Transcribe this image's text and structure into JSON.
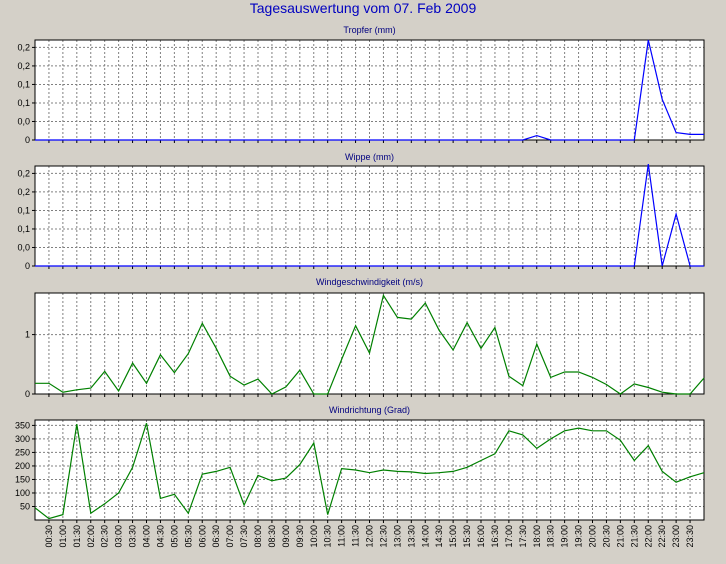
{
  "title": "Tagesauswertung vom 07. Feb 2009",
  "x_tick_labels": [
    "00:30",
    "01:00",
    "01:30",
    "02:00",
    "02:30",
    "03:00",
    "03:30",
    "04:00",
    "04:30",
    "05:00",
    "05:30",
    "06:00",
    "06:30",
    "07:00",
    "07:30",
    "08:00",
    "08:30",
    "09:00",
    "09:30",
    "10:00",
    "10:30",
    "11:00",
    "11:30",
    "12:00",
    "12:30",
    "13:00",
    "13:30",
    "14:00",
    "14:30",
    "15:00",
    "15:30",
    "16:00",
    "16:30",
    "17:00",
    "17:30",
    "18:00",
    "18:30",
    "19:00",
    "19:30",
    "20:00",
    "20:30",
    "21:00",
    "21:30",
    "22:00",
    "22:30",
    "23:00",
    "23:30"
  ],
  "chart_data": [
    {
      "type": "line",
      "title": "Tropfer (mm)",
      "color": "#0000ff",
      "ylim": [
        0,
        0.27
      ],
      "ytick_values": [
        0,
        0.05,
        0.1,
        0.15,
        0.2,
        0.25
      ],
      "ytick_labels": [
        "0",
        "0,0",
        "0,1",
        "0,1",
        "0,2",
        "0,2"
      ],
      "x": [
        "00:00",
        "00:30",
        "01:00",
        "01:30",
        "02:00",
        "02:30",
        "03:00",
        "03:30",
        "04:00",
        "04:30",
        "05:00",
        "05:30",
        "06:00",
        "06:30",
        "07:00",
        "07:30",
        "08:00",
        "08:30",
        "09:00",
        "09:30",
        "10:00",
        "10:30",
        "11:00",
        "11:30",
        "12:00",
        "12:30",
        "13:00",
        "13:30",
        "14:00",
        "14:30",
        "15:00",
        "15:30",
        "16:00",
        "16:30",
        "17:00",
        "17:30",
        "18:00",
        "18:30",
        "19:00",
        "19:30",
        "20:00",
        "20:30",
        "21:00",
        "21:30",
        "22:00",
        "22:30",
        "23:00",
        "23:30",
        "24:00"
      ],
      "values": [
        0,
        0,
        0,
        0,
        0,
        0,
        0,
        0,
        0,
        0,
        0,
        0,
        0,
        0,
        0,
        0,
        0,
        0,
        0,
        0,
        0,
        0,
        0,
        0,
        0,
        0,
        0,
        0,
        0,
        0,
        0,
        0,
        0,
        0,
        0,
        0,
        0.012,
        0,
        0,
        0,
        0,
        0,
        0,
        0,
        0.27,
        0.11,
        0.02,
        0.015,
        0.015
      ]
    },
    {
      "type": "line",
      "title": "Wippe (mm)",
      "color": "#0000ff",
      "ylim": [
        0,
        0.27
      ],
      "ytick_values": [
        0,
        0.05,
        0.1,
        0.15,
        0.2,
        0.25
      ],
      "ytick_labels": [
        "0",
        "0,0",
        "0,1",
        "0,1",
        "0,2",
        "0,2"
      ],
      "x": [
        "00:00",
        "00:30",
        "01:00",
        "01:30",
        "02:00",
        "02:30",
        "03:00",
        "03:30",
        "04:00",
        "04:30",
        "05:00",
        "05:30",
        "06:00",
        "06:30",
        "07:00",
        "07:30",
        "08:00",
        "08:30",
        "09:00",
        "09:30",
        "10:00",
        "10:30",
        "11:00",
        "11:30",
        "12:00",
        "12:30",
        "13:00",
        "13:30",
        "14:00",
        "14:30",
        "15:00",
        "15:30",
        "16:00",
        "16:30",
        "17:00",
        "17:30",
        "18:00",
        "18:30",
        "19:00",
        "19:30",
        "20:00",
        "20:30",
        "21:00",
        "21:30",
        "22:00",
        "22:30",
        "23:00",
        "23:30",
        "24:00"
      ],
      "values": [
        0,
        0,
        0,
        0,
        0,
        0,
        0,
        0,
        0,
        0,
        0,
        0,
        0,
        0,
        0,
        0,
        0,
        0,
        0,
        0,
        0,
        0,
        0,
        0,
        0,
        0,
        0,
        0,
        0,
        0,
        0,
        0,
        0,
        0,
        0,
        0,
        0,
        0,
        0,
        0,
        0,
        0,
        0,
        0,
        0.275,
        0,
        0.14,
        0,
        0
      ]
    },
    {
      "type": "line",
      "title": "Windgeschwindigkeit (m/s)",
      "color": "#008000",
      "ylim": [
        0,
        1.7
      ],
      "ytick_values": [
        0,
        1
      ],
      "ytick_labels": [
        "0",
        "1"
      ],
      "x": [
        "00:00",
        "00:30",
        "01:00",
        "01:30",
        "02:00",
        "02:30",
        "03:00",
        "03:30",
        "04:00",
        "04:30",
        "05:00",
        "05:30",
        "06:00",
        "06:30",
        "07:00",
        "07:30",
        "08:00",
        "08:30",
        "09:00",
        "09:30",
        "10:00",
        "10:30",
        "11:00",
        "11:30",
        "12:00",
        "12:30",
        "13:00",
        "13:30",
        "14:00",
        "14:30",
        "15:00",
        "15:30",
        "16:00",
        "16:30",
        "17:00",
        "17:30",
        "18:00",
        "18:30",
        "19:00",
        "19:30",
        "20:00",
        "20:30",
        "21:00",
        "21:30",
        "22:00",
        "22:30",
        "23:00",
        "23:30",
        "24:00"
      ],
      "values": [
        0.18,
        0.18,
        0.03,
        0.07,
        0.1,
        0.38,
        0.05,
        0.52,
        0.18,
        0.66,
        0.36,
        0.68,
        1.19,
        0.77,
        0.3,
        0.15,
        0.25,
        0,
        0.12,
        0.4,
        0,
        0,
        0.58,
        1.15,
        0.69,
        1.66,
        1.29,
        1.26,
        1.53,
        1.07,
        0.74,
        1.2,
        0.77,
        1.12,
        0.3,
        0.14,
        0.84,
        0.28,
        0.37,
        0.37,
        0.28,
        0.16,
        0,
        0.17,
        0.11,
        0.03,
        0,
        0,
        0.27
      ]
    },
    {
      "type": "line",
      "title": "Windrichtung (Grad)",
      "color": "#008000",
      "ylim": [
        0,
        370
      ],
      "ytick_values": [
        50,
        100,
        150,
        200,
        250,
        300,
        350
      ],
      "ytick_labels": [
        "50",
        "100",
        "150",
        "200",
        "250",
        "300",
        "350"
      ],
      "x": [
        "00:00",
        "00:30",
        "01:00",
        "01:30",
        "02:00",
        "02:30",
        "03:00",
        "03:30",
        "04:00",
        "04:30",
        "05:00",
        "05:30",
        "06:00",
        "06:30",
        "07:00",
        "07:30",
        "08:00",
        "08:30",
        "09:00",
        "09:30",
        "10:00",
        "10:30",
        "11:00",
        "11:30",
        "12:00",
        "12:30",
        "13:00",
        "13:30",
        "14:00",
        "14:30",
        "15:00",
        "15:30",
        "16:00",
        "16:30",
        "17:00",
        "17:30",
        "18:00",
        "18:30",
        "19:00",
        "19:30",
        "20:00",
        "20:30",
        "21:00",
        "21:30",
        "22:00",
        "22:30",
        "23:00",
        "23:30",
        "24:00"
      ],
      "values": [
        45,
        5,
        20,
        355,
        25,
        60,
        100,
        195,
        358,
        80,
        95,
        25,
        170,
        180,
        195,
        55,
        165,
        145,
        155,
        205,
        285,
        20,
        190,
        185,
        175,
        185,
        180,
        178,
        172,
        175,
        180,
        195,
        220,
        245,
        330,
        315,
        265,
        300,
        330,
        340,
        330,
        330,
        295,
        220,
        275,
        180,
        140,
        160,
        175
      ]
    }
  ]
}
